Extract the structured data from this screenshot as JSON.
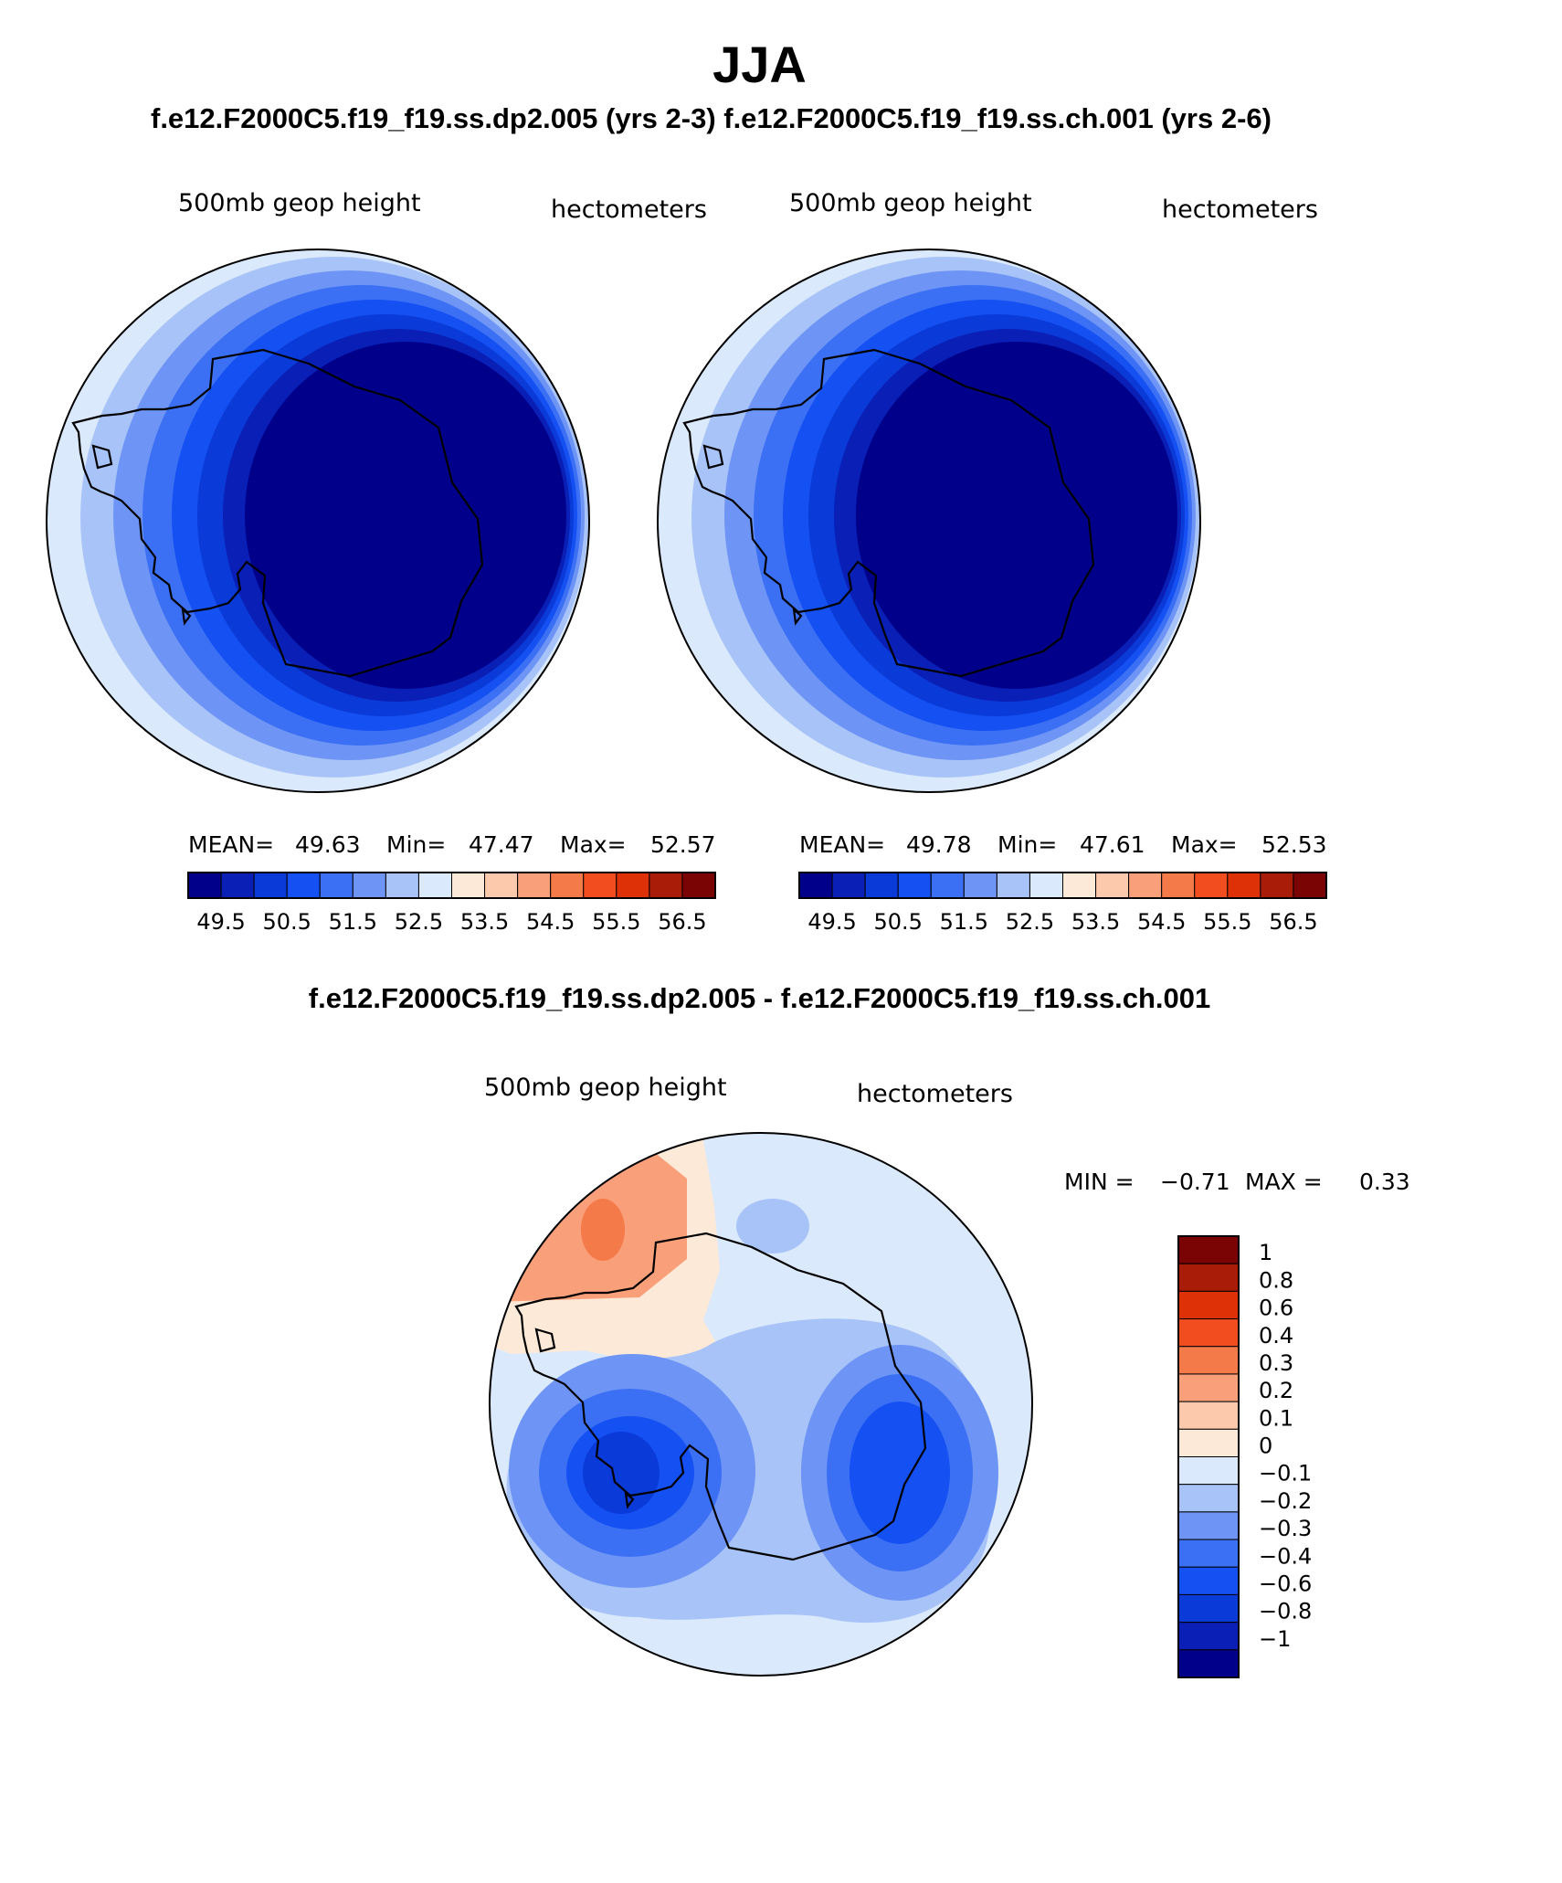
{
  "title": "JJA",
  "case_titles": "f.e12.F2000C5.f19_f19.ss.dp2.005 (yrs 2-3)   f.e12.F2000C5.f19_f19.ss.ch.001 (yrs 2-6)",
  "diff_title": "f.e12.F2000C5.f19_f19.ss.dp2.005 - f.e12.F2000C5.f19_f19.ss.ch.001",
  "chart_data": [
    {
      "type": "heatmap",
      "projection": "south-polar-stereographic",
      "variable": "500mb geop height",
      "units": "hectometers",
      "stats": {
        "mean_label": "MEAN=",
        "mean": "49.63",
        "min_label": "Min=",
        "min": "47.47",
        "max_label": "Max=",
        "max": "52.57"
      },
      "colorbar_ticks": [
        "49.5",
        "50.5",
        "51.5",
        "52.5",
        "53.5",
        "54.5",
        "55.5",
        "56.5"
      ],
      "colorbar_colors": [
        "#00008b",
        "#0a1fb5",
        "#0a3ad8",
        "#1450f2",
        "#3c70f4",
        "#6e95f5",
        "#a8c3f8",
        "#dbe9fc",
        "#fde9d8",
        "#fcc9ac",
        "#f9a07a",
        "#f57a4a",
        "#f24d1e",
        "#de3107",
        "#a91c08",
        "#7a0404"
      ],
      "rings": [
        {
          "value": 52.5,
          "color": "#dbe9fc"
        },
        {
          "value": 52.0,
          "color": "#a8c3f8"
        },
        {
          "value": 51.5,
          "color": "#6e95f5"
        },
        {
          "value": 51.0,
          "color": "#3c70f4"
        },
        {
          "value": 50.5,
          "color": "#1450f2"
        },
        {
          "value": 50.0,
          "color": "#0a3ad8"
        },
        {
          "value": 49.5,
          "color": "#0a1fb5"
        },
        {
          "value": 49.0,
          "color": "#00008b"
        }
      ]
    },
    {
      "type": "heatmap",
      "projection": "south-polar-stereographic",
      "variable": "500mb geop height",
      "units": "hectometers",
      "stats": {
        "mean_label": "MEAN=",
        "mean": "49.78",
        "min_label": "Min=",
        "min": "47.61",
        "max_label": "Max=",
        "max": "52.53"
      },
      "colorbar_ticks": [
        "49.5",
        "50.5",
        "51.5",
        "52.5",
        "53.5",
        "54.5",
        "55.5",
        "56.5"
      ],
      "colorbar_colors": [
        "#00008b",
        "#0a1fb5",
        "#0a3ad8",
        "#1450f2",
        "#3c70f4",
        "#6e95f5",
        "#a8c3f8",
        "#dbe9fc",
        "#fde9d8",
        "#fcc9ac",
        "#f9a07a",
        "#f57a4a",
        "#f24d1e",
        "#de3107",
        "#a91c08",
        "#7a0404"
      ],
      "rings": [
        {
          "value": 52.5,
          "color": "#dbe9fc"
        },
        {
          "value": 52.0,
          "color": "#a8c3f8"
        },
        {
          "value": 51.5,
          "color": "#6e95f5"
        },
        {
          "value": 51.0,
          "color": "#3c70f4"
        },
        {
          "value": 50.5,
          "color": "#1450f2"
        },
        {
          "value": 50.0,
          "color": "#0a3ad8"
        },
        {
          "value": 49.5,
          "color": "#0a1fb5"
        },
        {
          "value": 49.0,
          "color": "#00008b"
        }
      ]
    },
    {
      "type": "heatmap",
      "projection": "south-polar-stereographic",
      "variable": "500mb geop height",
      "units": "hectometers",
      "stats": {
        "min_label": "MIN =",
        "min": "−0.71",
        "max_label": "MAX =",
        "max": "0.33"
      },
      "colorbar_ticks": [
        "1",
        "0.8",
        "0.6",
        "0.4",
        "0.3",
        "0.2",
        "0.1",
        "0",
        "−0.1",
        "−0.2",
        "−0.3",
        "−0.4",
        "−0.6",
        "−0.8",
        "−1"
      ],
      "colorbar_colors": [
        "#7a0404",
        "#a91c08",
        "#de3107",
        "#f24d1e",
        "#f57a4a",
        "#f9a07a",
        "#fcc9ac",
        "#fde9d8",
        "#dbe9fc",
        "#a8c3f8",
        "#6e95f5",
        "#3c70f4",
        "#1450f2",
        "#0a3ad8",
        "#0a1fb5",
        "#00008b"
      ],
      "background_color": "#dbe9fc",
      "features": [
        {
          "name": "positive-anomaly-west",
          "value": 0.3,
          "color": "#f9a07a"
        },
        {
          "name": "positive-anomaly-core",
          "value": 0.4,
          "color": "#f57a4a"
        },
        {
          "name": "positive-anomaly-north",
          "value": 0.1,
          "color": "#fde9d8"
        },
        {
          "name": "negative-anomaly-small",
          "value": -0.2,
          "color": "#a8c3f8"
        },
        {
          "name": "negative-anomaly-left-outer",
          "value": -0.3,
          "color": "#6e95f5"
        },
        {
          "name": "negative-anomaly-left-core",
          "value": -0.6,
          "color": "#0a3ad8"
        },
        {
          "name": "negative-anomaly-right-outer",
          "value": -0.3,
          "color": "#6e95f5"
        },
        {
          "name": "negative-anomaly-right-core",
          "value": -0.6,
          "color": "#0a3ad8"
        }
      ]
    }
  ]
}
